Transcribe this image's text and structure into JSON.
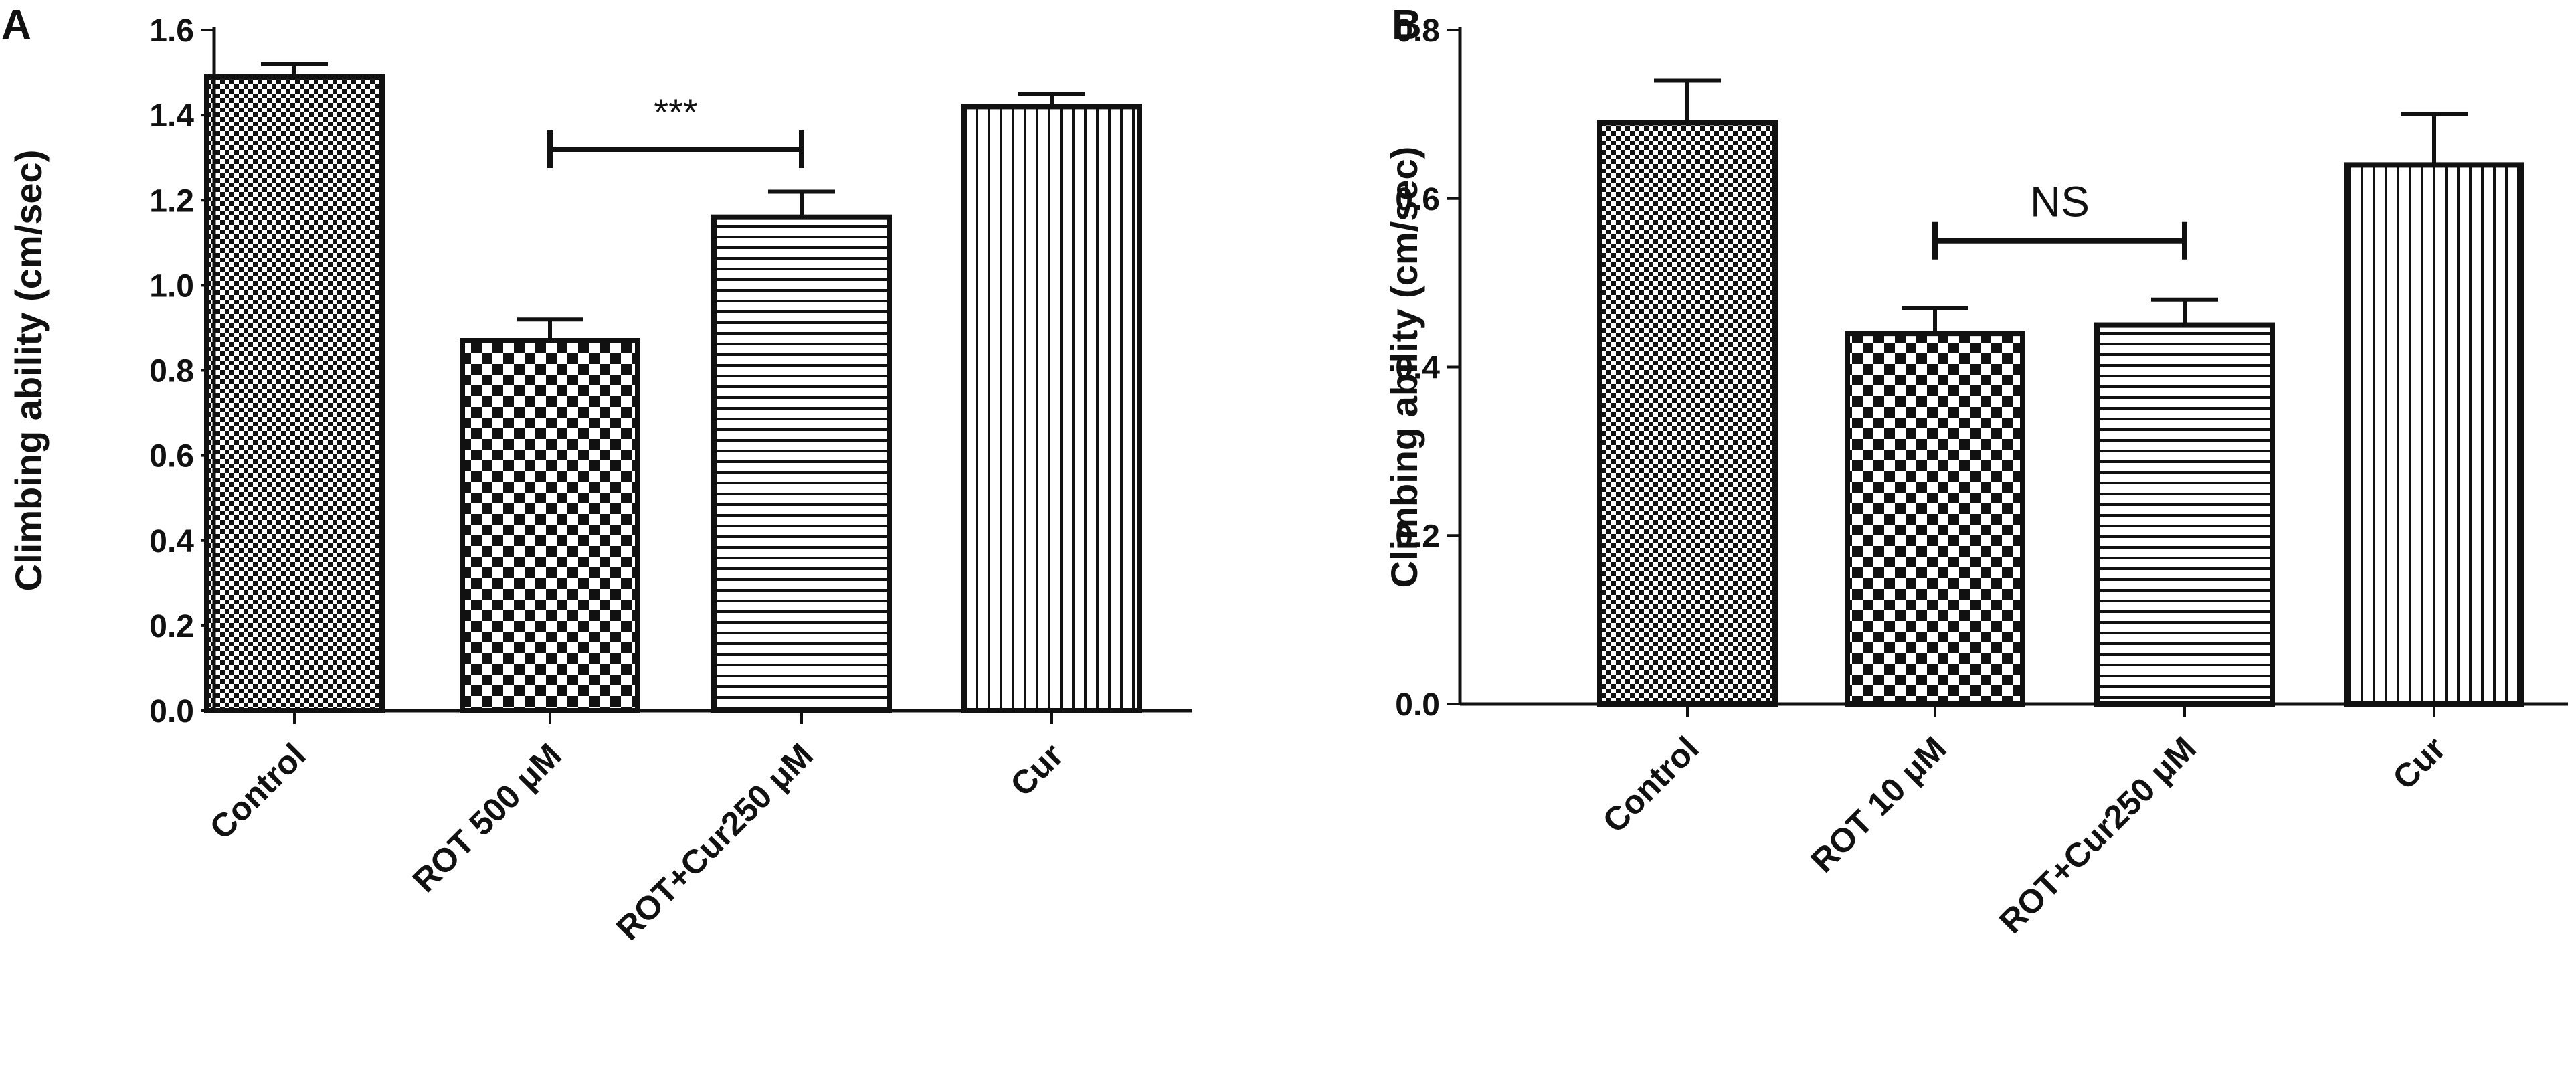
{
  "chart_data": [
    {
      "panel": "A",
      "type": "bar",
      "ylabel": "Climbing ability (cm/sec)",
      "ylim": [
        0,
        1.6
      ],
      "yticks": [
        "0.0",
        "0.2",
        "0.4",
        "0.6",
        "0.8",
        "1.0",
        "1.2",
        "1.4",
        "1.6"
      ],
      "categories": [
        "Control",
        "ROT 500 μM",
        "ROT+Cur250 μM",
        "Cur"
      ],
      "values": [
        1.49,
        0.87,
        1.16,
        1.42
      ],
      "errors": [
        0.03,
        0.05,
        0.06,
        0.03
      ],
      "patterns": [
        "fine-check",
        "coarse-check",
        "horizontal-stripes",
        "vertical-stripes"
      ],
      "significance": {
        "from": 1,
        "to": 2,
        "label": "***",
        "y": 1.32
      }
    },
    {
      "panel": "B",
      "type": "bar",
      "ylabel": "Climbing ability (cm/sec)",
      "ylim": [
        0,
        0.8
      ],
      "yticks": [
        "0.0",
        "0.2",
        "0.4",
        "0.6",
        "0.8"
      ],
      "categories": [
        "Control",
        "ROT 10 μM",
        "ROT+Cur250 μM",
        "Cur"
      ],
      "values": [
        0.69,
        0.44,
        0.45,
        0.64
      ],
      "errors": [
        0.05,
        0.03,
        0.03,
        0.06
      ],
      "patterns": [
        "fine-check",
        "coarse-check",
        "horizontal-stripes",
        "vertical-stripes"
      ],
      "significance": {
        "from": 1,
        "to": 2,
        "label": "NS",
        "y": 0.55
      }
    }
  ]
}
